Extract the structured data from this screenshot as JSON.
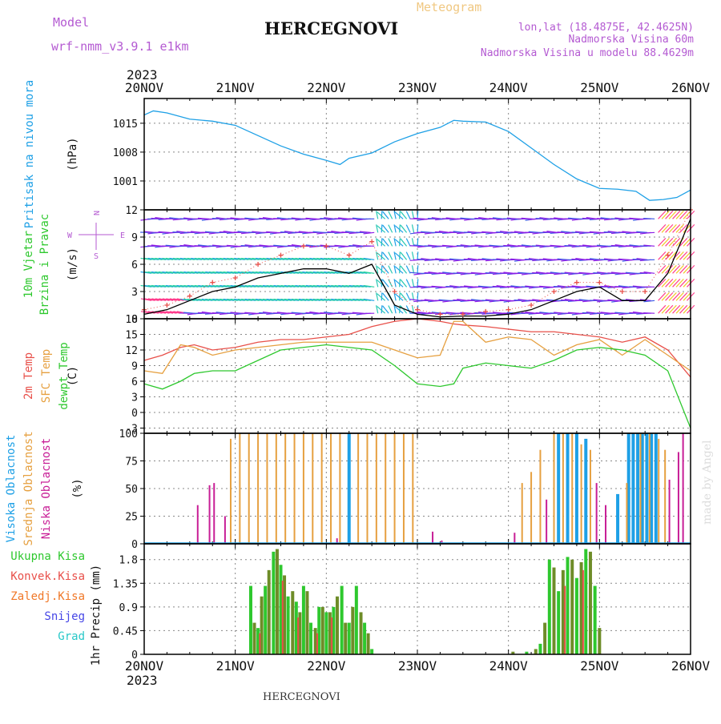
{
  "header": {
    "model_label": "Model",
    "model_name": "wrf-nmm_v3.9.1 e1km",
    "station": "HERCEGNOVI",
    "meteogram_label": "Meteogram",
    "lonlat": "lon,lat (18.4875E, 42.4625N)",
    "altitude": "Nadmorska Visina 60m",
    "model_altitude": "Nadmorska Visina u modelu 88.4629m",
    "footer_station": "HERCEGNOVI",
    "watermark": "made by Angel"
  },
  "colors": {
    "pressure": "#1ea0e6",
    "temp2m": "#e8504a",
    "sfc": "#e6a040",
    "dewpt": "#2ec82e",
    "high_cloud": "#1ea0e6",
    "mid_cloud": "#e6a040",
    "low_cloud": "#c81e96",
    "total_precip": "#2ec82e",
    "conv_precip": "#e8504a",
    "freezing": "#f07828",
    "snow": "#4646e6",
    "hail": "#28c8c8",
    "header_purple": "#b45ad2",
    "header_orange": "#f0c882",
    "wind_speed_line": "#000000",
    "wind_gust_marker": "#e8504a"
  },
  "x_axis": {
    "year": "2023",
    "ticks": [
      "20NOV",
      "21NOV",
      "22NOV",
      "23NOV",
      "24NOV",
      "25NOV",
      "26NOV"
    ]
  },
  "chart_data": [
    {
      "type": "line",
      "panel": "pressure",
      "title_lines": [
        "Pritisak na nivou mora"
      ],
      "unit": "(hPa)",
      "ylim": [
        994,
        1021
      ],
      "yticks": [
        "1001",
        "1008",
        "1015"
      ],
      "grid": true,
      "x_days": [
        0,
        0.1,
        0.25,
        0.5,
        0.75,
        1.0,
        1.25,
        1.5,
        1.75,
        2.0,
        2.15,
        2.25,
        2.5,
        2.75,
        3.0,
        3.25,
        3.4,
        3.5,
        3.75,
        4.0,
        4.25,
        4.5,
        4.75,
        5.0,
        5.2,
        5.4,
        5.55,
        5.7,
        5.85,
        6.0
      ],
      "series": [
        {
          "values": [
            1017,
            1018,
            1017.5,
            1016,
            1015.5,
            1014.5,
            1012,
            1009.5,
            1007.5,
            1006,
            1005,
            1006.5,
            1007.8,
            1010.5,
            1012.5,
            1014,
            1015.7,
            1015.5,
            1015.3,
            1013,
            1009,
            1005,
            1001.5,
            999.2,
            999,
            998.5,
            996.3,
            996.5,
            997,
            998.8
          ]
        }
      ]
    },
    {
      "type": "line",
      "panel": "wind",
      "title_lines": [
        "10m Vjetar",
        "Brzina i Pravac"
      ],
      "unit": "(m/s)",
      "compass": [
        "N",
        "E",
        "S",
        "W"
      ],
      "ylim": [
        0,
        12
      ],
      "yticks": [
        "0",
        "3",
        "6",
        "9",
        "12"
      ],
      "grid": true,
      "x_days": [
        0,
        0.25,
        0.5,
        0.75,
        1.0,
        1.25,
        1.5,
        1.75,
        2.0,
        2.25,
        2.5,
        2.75,
        3.0,
        3.25,
        3.5,
        3.75,
        4.0,
        4.25,
        4.5,
        4.75,
        5.0,
        5.25,
        5.5,
        5.75,
        6.0
      ],
      "series": [
        {
          "name": "speed",
          "values": [
            0.5,
            1.0,
            2.0,
            3.0,
            3.5,
            4.5,
            5.0,
            5.5,
            5.5,
            5.0,
            6.0,
            1.5,
            0.5,
            0.2,
            0.3,
            0.3,
            0.5,
            1.0,
            2.0,
            3.0,
            3.5,
            2.0,
            2.0,
            5.0,
            11.0
          ]
        },
        {
          "name": "gust",
          "values": [
            1.0,
            1.5,
            2.5,
            4.0,
            4.5,
            6.0,
            7.0,
            8.0,
            8.0,
            7.0,
            8.5,
            3.0,
            1.0,
            0.5,
            0.5,
            0.8,
            1.0,
            1.5,
            3.0,
            4.0,
            4.0,
            3.0,
            3.0,
            7.0,
            12.0
          ]
        }
      ]
    },
    {
      "type": "line",
      "panel": "temperature",
      "title_lines": [
        "2m Temp",
        "SFC Temp",
        "dewpt Temp"
      ],
      "unit": "(C)",
      "ylim": [
        -4,
        18
      ],
      "yticks": [
        "-3",
        "0",
        "3",
        "6",
        "9",
        "12",
        "15",
        "18"
      ],
      "grid": true,
      "x_days": [
        0,
        0.2,
        0.4,
        0.55,
        0.75,
        1.0,
        1.25,
        1.5,
        1.75,
        2.0,
        2.25,
        2.5,
        2.75,
        3.0,
        3.25,
        3.4,
        3.5,
        3.75,
        4.0,
        4.25,
        4.5,
        4.75,
        5.0,
        5.25,
        5.5,
        5.75,
        6.0
      ],
      "series": [
        {
          "name": "2m Temp",
          "values": [
            10,
            11,
            12.5,
            13,
            12,
            12.5,
            13.5,
            14,
            14,
            14.5,
            15,
            16.5,
            17.5,
            18,
            17.5,
            17,
            16.8,
            16.5,
            16,
            15.5,
            15.5,
            15,
            14.5,
            13.5,
            14.5,
            12,
            6.8
          ]
        },
        {
          "name": "SFC Temp",
          "values": [
            8,
            7.5,
            13,
            12.5,
            11,
            12,
            12.5,
            13,
            13.5,
            13.5,
            13.5,
            13.5,
            12,
            10.5,
            11,
            17.5,
            17.5,
            13.5,
            14.5,
            14,
            11,
            13,
            14,
            11,
            14,
            11,
            8
          ]
        },
        {
          "name": "dewpt Temp",
          "values": [
            5.5,
            4.5,
            6,
            7.5,
            8,
            8,
            10,
            12,
            12.5,
            13,
            12.5,
            12,
            9,
            5.5,
            5,
            5.5,
            8.5,
            9.5,
            9,
            8.5,
            10,
            12,
            12.5,
            12,
            11,
            8,
            -3
          ]
        }
      ]
    },
    {
      "type": "bar",
      "panel": "clouds",
      "title_lines": [
        "Visoka Oblacnost",
        "Srednja Oblacnost",
        "Niska Oblacnost"
      ],
      "unit": "(%)",
      "ylim": [
        0,
        100
      ],
      "yticks": [
        "0",
        "25",
        "50",
        "75",
        "100"
      ],
      "grid": true,
      "series": [
        {
          "name": "Visoka Oblacnost",
          "bars": [
            [
              2.25,
              100
            ],
            [
              4.55,
              100
            ],
            [
              4.65,
              100
            ],
            [
              4.75,
              100
            ],
            [
              4.85,
              95
            ],
            [
              5.2,
              45
            ],
            [
              5.32,
              100
            ],
            [
              5.37,
              100
            ],
            [
              5.42,
              100
            ],
            [
              5.47,
              100
            ],
            [
              5.52,
              100
            ],
            [
              5.57,
              100
            ],
            [
              5.62,
              100
            ]
          ]
        },
        {
          "name": "Srednja Oblacnost",
          "bars": [
            [
              0.95,
              95
            ],
            [
              1.05,
              100
            ],
            [
              1.15,
              100
            ],
            [
              1.25,
              100
            ],
            [
              1.35,
              100
            ],
            [
              1.45,
              100
            ],
            [
              1.55,
              100
            ],
            [
              1.65,
              100
            ],
            [
              1.75,
              100
            ],
            [
              1.85,
              100
            ],
            [
              1.95,
              100
            ],
            [
              2.05,
              100
            ],
            [
              2.15,
              100
            ],
            [
              2.35,
              100
            ],
            [
              2.45,
              100
            ],
            [
              2.55,
              100
            ],
            [
              2.65,
              100
            ],
            [
              2.75,
              100
            ],
            [
              2.85,
              100
            ],
            [
              2.95,
              100
            ],
            [
              4.15,
              55
            ],
            [
              4.25,
              65
            ],
            [
              4.35,
              85
            ],
            [
              4.5,
              100
            ],
            [
              4.6,
              100
            ],
            [
              4.7,
              100
            ],
            [
              4.8,
              90
            ],
            [
              4.9,
              85
            ],
            [
              5.3,
              55
            ],
            [
              5.45,
              100
            ],
            [
              5.55,
              100
            ],
            [
              5.65,
              95
            ],
            [
              5.72,
              85
            ]
          ]
        },
        {
          "name": "Niska Oblacnost",
          "bars": [
            [
              0.57,
              35
            ],
            [
              0.7,
              53
            ],
            [
              0.75,
              55
            ],
            [
              0.87,
              25
            ],
            [
              2.1,
              5
            ],
            [
              3.15,
              11
            ],
            [
              3.25,
              3
            ],
            [
              4.05,
              10
            ],
            [
              4.4,
              40
            ],
            [
              4.95,
              55
            ],
            [
              5.05,
              35
            ],
            [
              5.75,
              58
            ],
            [
              5.85,
              83
            ],
            [
              5.9,
              100
            ]
          ]
        }
      ]
    },
    {
      "type": "bar",
      "panel": "precip",
      "title_lines": [
        "Ukupna Kisa",
        "Konvek.Kisa",
        "Zaledj.Kisa",
        "Snijeg",
        "Grad"
      ],
      "unit": "1hr Precip (mm)",
      "ylim": [
        0,
        2.1
      ],
      "yticks": [
        "0",
        "0.45",
        "0.9",
        "1.35",
        "1.8"
      ],
      "grid": true,
      "series": [
        {
          "name": "Ukupna Kisa",
          "bars": [
            [
              1.17,
              1.3
            ],
            [
              1.21,
              0.6
            ],
            [
              1.25,
              0.5
            ],
            [
              1.29,
              1.1
            ],
            [
              1.33,
              1.3
            ],
            [
              1.37,
              1.6
            ],
            [
              1.42,
              1.95
            ],
            [
              1.46,
              2.0
            ],
            [
              1.5,
              1.7
            ],
            [
              1.54,
              1.5
            ],
            [
              1.58,
              1.1
            ],
            [
              1.63,
              1.2
            ],
            [
              1.67,
              1.0
            ],
            [
              1.71,
              0.8
            ],
            [
              1.75,
              1.3
            ],
            [
              1.79,
              1.2
            ],
            [
              1.83,
              0.6
            ],
            [
              1.88,
              0.5
            ],
            [
              1.92,
              0.9
            ],
            [
              1.96,
              0.9
            ],
            [
              2.0,
              0.8
            ],
            [
              2.04,
              0.8
            ],
            [
              2.08,
              0.9
            ],
            [
              2.12,
              1.1
            ],
            [
              2.17,
              1.3
            ],
            [
              2.21,
              0.6
            ],
            [
              2.25,
              0.6
            ],
            [
              2.29,
              0.9
            ],
            [
              2.33,
              1.3
            ],
            [
              2.38,
              0.8
            ],
            [
              2.42,
              0.6
            ],
            [
              2.46,
              0.4
            ],
            [
              2.5,
              0.1
            ],
            [
              4.05,
              0.05
            ],
            [
              4.2,
              0.05
            ],
            [
              4.3,
              0.1
            ],
            [
              4.35,
              0.2
            ],
            [
              4.4,
              0.6
            ],
            [
              4.45,
              1.8
            ],
            [
              4.5,
              1.65
            ],
            [
              4.55,
              1.2
            ],
            [
              4.6,
              1.6
            ],
            [
              4.65,
              1.85
            ],
            [
              4.7,
              1.8
            ],
            [
              4.75,
              1.45
            ],
            [
              4.8,
              1.75
            ],
            [
              4.85,
              2.0
            ],
            [
              4.9,
              1.95
            ],
            [
              4.95,
              1.3
            ],
            [
              5.0,
              0.5
            ]
          ]
        },
        {
          "name": "Konvek.Kisa",
          "bars": [
            [
              1.27,
              0.4
            ],
            [
              1.52,
              1.4
            ],
            [
              1.69,
              0.7
            ],
            [
              1.9,
              0.4
            ],
            [
              2.06,
              0.7
            ],
            [
              4.62,
              1.3
            ],
            [
              4.82,
              1.6
            ]
          ]
        }
      ]
    }
  ]
}
